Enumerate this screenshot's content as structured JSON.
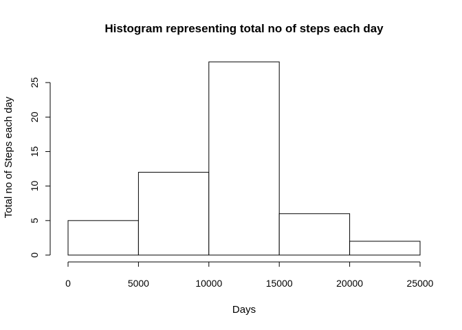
{
  "chart_data": {
    "type": "bar",
    "title": "Histogram representing total no of steps each day",
    "xlabel": "Days",
    "ylabel": "Total no of Steps each day",
    "bins": [
      {
        "from": 0,
        "to": 5000,
        "count": 5
      },
      {
        "from": 5000,
        "to": 10000,
        "count": 12
      },
      {
        "from": 10000,
        "to": 15000,
        "count": 28
      },
      {
        "from": 15000,
        "to": 20000,
        "count": 6
      },
      {
        "from": 20000,
        "to": 25000,
        "count": 2
      }
    ],
    "xlim": [
      0,
      25000
    ],
    "ylim": [
      0,
      28
    ],
    "xticks": [
      0,
      5000,
      10000,
      15000,
      20000,
      25000
    ],
    "yticks": [
      0,
      5,
      10,
      15,
      20,
      25
    ],
    "grid": false,
    "bar_fill": "#ffffff",
    "bar_stroke": "#000000"
  }
}
